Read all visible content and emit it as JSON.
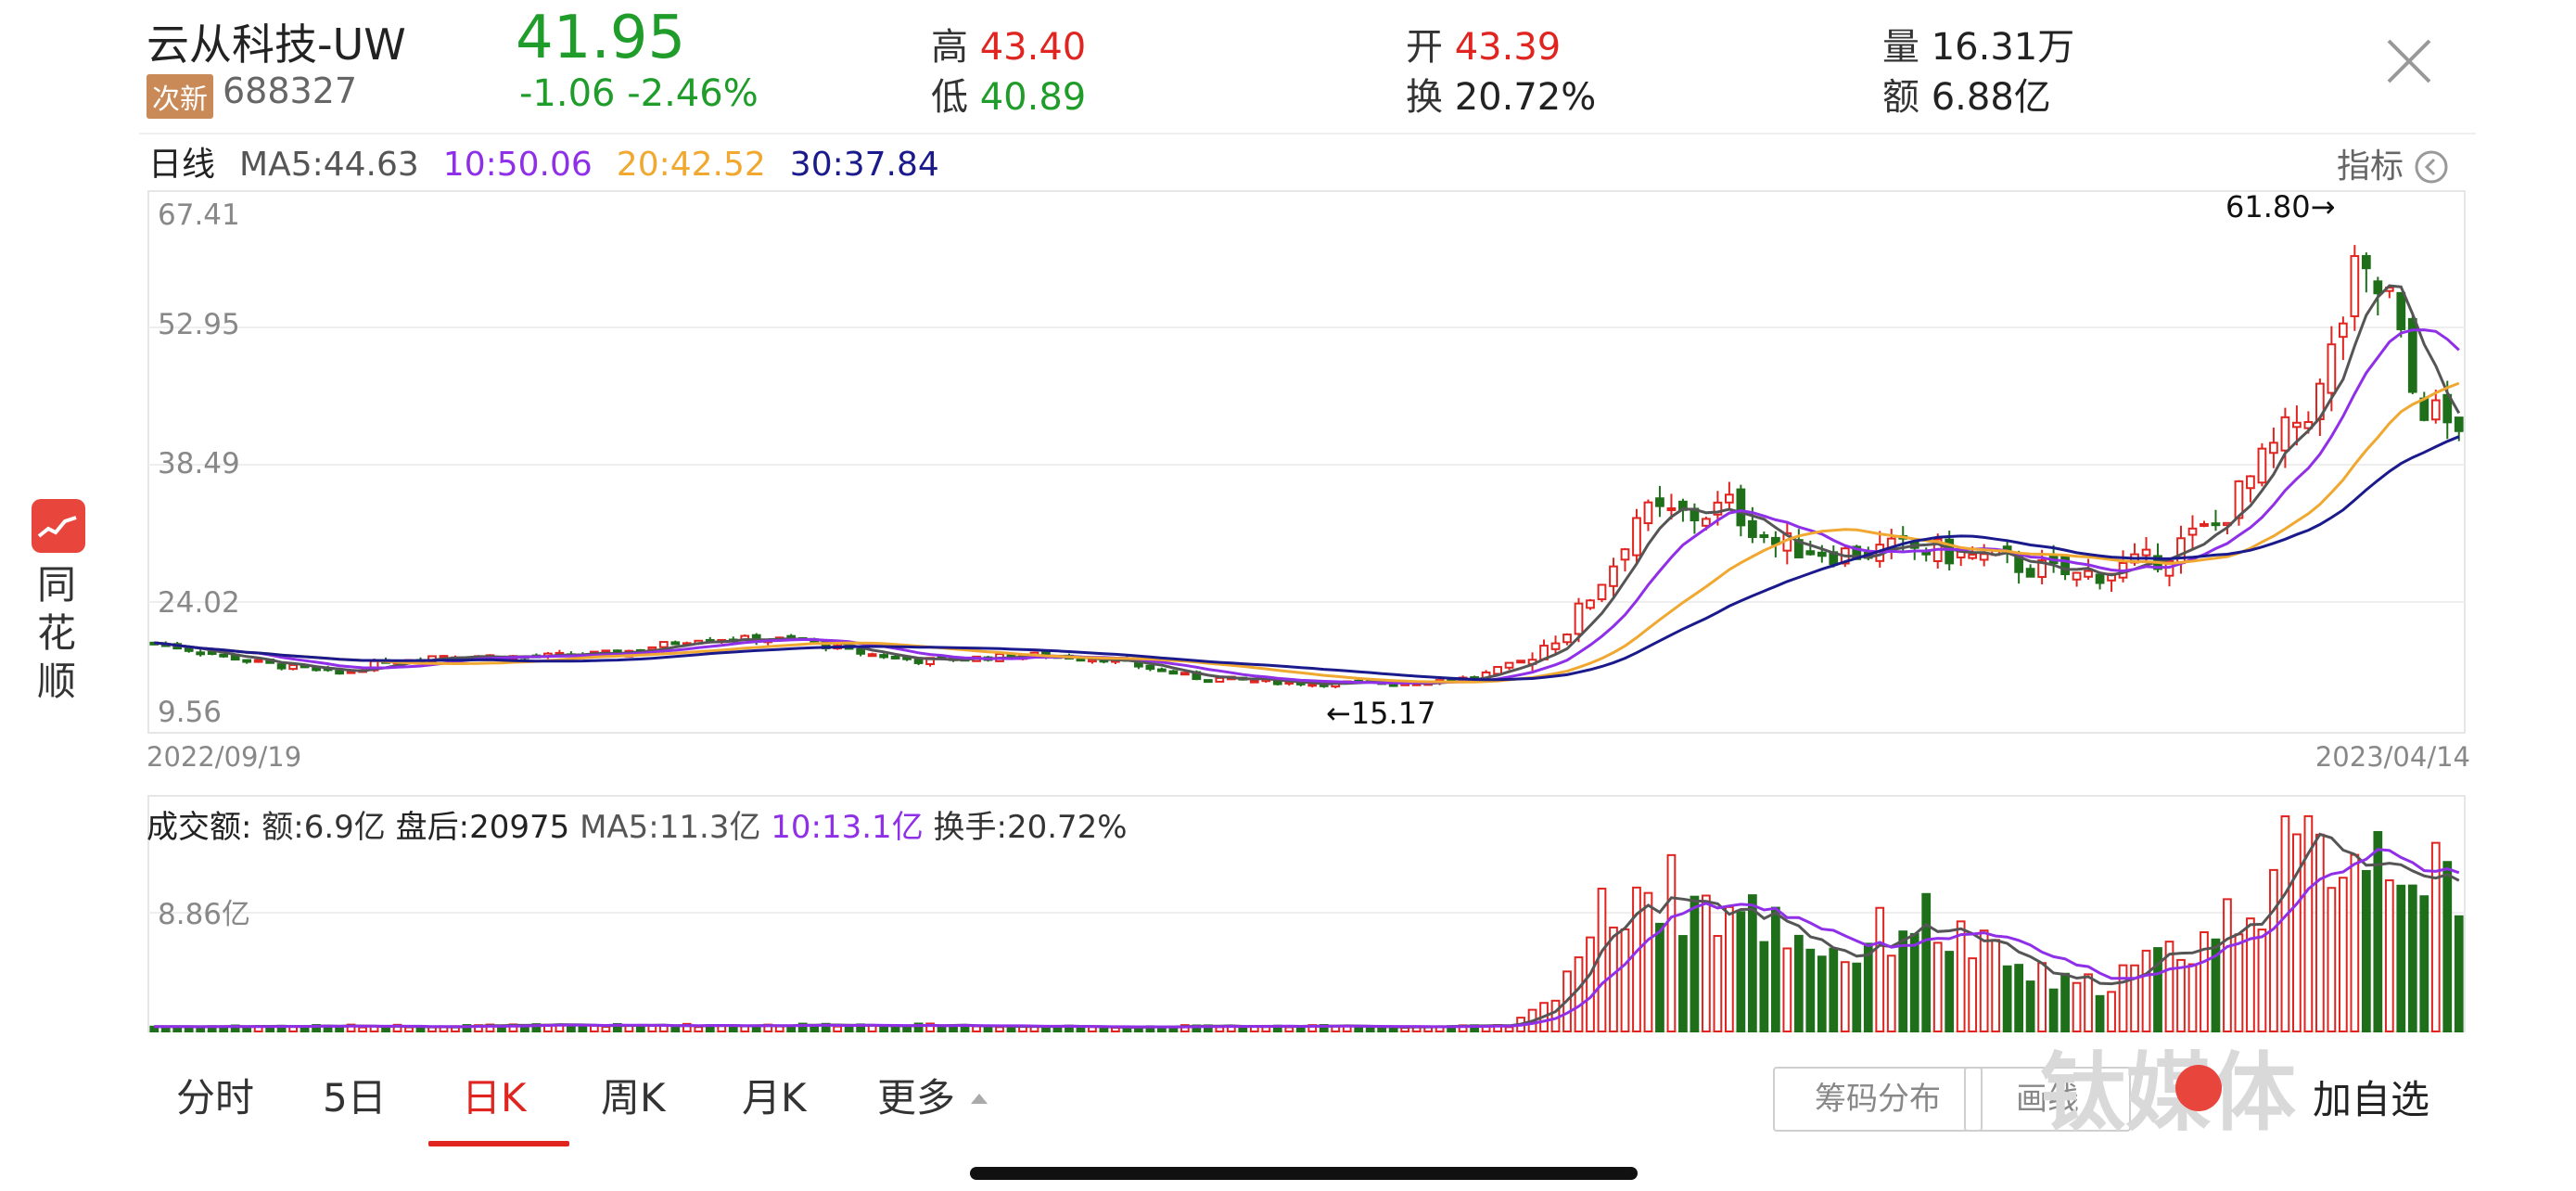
{
  "header": {
    "name": "云从科技-UW",
    "badge": "次新",
    "code": "688327",
    "price": "41.95",
    "change": "-1.06  -2.46%",
    "high_label": "高",
    "high_value": "43.40",
    "low_label": "低",
    "low_value": "40.89",
    "open_label": "开",
    "open_value": "43.39",
    "turnover_label": "换",
    "turnover_value": "20.72%",
    "volume_label": "量",
    "volume_value": "16.31万",
    "amount_label": "额",
    "amount_value": "6.88亿"
  },
  "legend": {
    "period": "日线",
    "ma5": "MA5:44.63",
    "ma10": "10:50.06",
    "ma20": "20:42.52",
    "ma30": "30:37.84",
    "indicator": "指标"
  },
  "vol_legend": {
    "label": "成交额:",
    "amount": "额:6.9亿",
    "after_hours": "盘后:20975",
    "ma5": "MA5:11.3亿",
    "ma10": "10:13.1亿",
    "turnover": "换手:20.72%"
  },
  "sidebar": {
    "app_name": "同花顺"
  },
  "tabs": [
    {
      "label": "分时"
    },
    {
      "label": "5日"
    },
    {
      "label": "日K"
    },
    {
      "label": "周K"
    },
    {
      "label": "月K"
    },
    {
      "label": "更多"
    }
  ],
  "buttons": {
    "chips": "筹码分布",
    "draw": "画线",
    "add_watch": "加自选"
  },
  "watermark": "钛媒体",
  "colors": {
    "up": "#e0241f",
    "down": "#1f6e1a",
    "ma5": "#555555",
    "ma10": "#8f2fe8",
    "ma20": "#f0a830",
    "ma30": "#1a1a8c"
  },
  "chart_data": {
    "type": "candlestick",
    "price_axis": {
      "ticks": [
        "67.41",
        "52.95",
        "38.49",
        "24.02",
        "9.56"
      ],
      "ylim": [
        9.56,
        67.41
      ]
    },
    "date_range": {
      "start": "2022/09/19",
      "end": "2023/04/14"
    },
    "annotations": {
      "high": "61.80→",
      "low": "←15.17"
    },
    "volume_axis": {
      "tick": "8.86亿"
    },
    "price_anchors": [
      [
        0,
        19.5
      ],
      [
        10,
        17.2
      ],
      [
        16,
        16.2
      ],
      [
        20,
        17.6
      ],
      [
        25,
        18.2
      ],
      [
        32,
        18.0
      ],
      [
        40,
        18.4
      ],
      [
        47,
        20.0
      ],
      [
        56,
        19.8
      ],
      [
        60,
        18.6
      ],
      [
        66,
        17.6
      ],
      [
        76,
        18.2
      ],
      [
        82,
        17.8
      ],
      [
        90,
        15.8
      ],
      [
        100,
        15.2
      ],
      [
        108,
        15.3
      ],
      [
        114,
        15.8
      ],
      [
        118,
        17.5
      ],
      [
        122,
        21.0
      ],
      [
        126,
        28.0
      ],
      [
        128,
        33.0
      ],
      [
        133,
        33.0
      ],
      [
        136,
        34.0
      ],
      [
        140,
        30.0
      ],
      [
        146,
        29.0
      ],
      [
        152,
        29.5
      ],
      [
        160,
        28.0
      ],
      [
        166,
        26.5
      ],
      [
        172,
        28.0
      ],
      [
        178,
        32.0
      ],
      [
        183,
        40.0
      ],
      [
        187,
        46.0
      ],
      [
        190,
        58.0
      ],
      [
        193,
        56.0
      ],
      [
        195,
        46.0
      ],
      [
        198,
        42.5
      ],
      [
        199,
        41.95
      ]
    ],
    "volume_anchors": [
      [
        0,
        0.3
      ],
      [
        40,
        0.35
      ],
      [
        60,
        0.4
      ],
      [
        80,
        0.3
      ],
      [
        117,
        0.3
      ],
      [
        120,
        1.5
      ],
      [
        124,
        6.0
      ],
      [
        128,
        9.0
      ],
      [
        134,
        7.5
      ],
      [
        140,
        6.5
      ],
      [
        146,
        4.5
      ],
      [
        152,
        7.0
      ],
      [
        160,
        4.0
      ],
      [
        166,
        2.5
      ],
      [
        172,
        4.0
      ],
      [
        178,
        6.0
      ],
      [
        184,
        10.0
      ],
      [
        190,
        11.5
      ],
      [
        195,
        11.0
      ],
      [
        199,
        6.9
      ]
    ],
    "vol_ymax": 14
  }
}
